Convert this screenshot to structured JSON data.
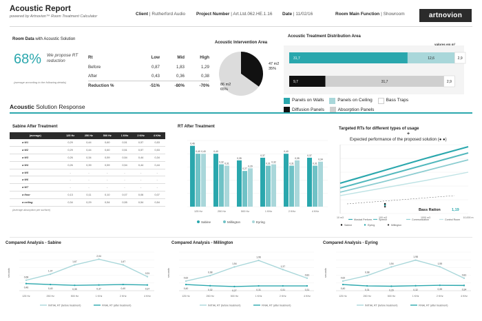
{
  "header": {
    "title": "Acoustic Report",
    "subtitle": "powered by Artnovion™ Room Treatment Calculator",
    "client_label": "Client",
    "client_value": "Rutherford Audio",
    "project_label": "Project Number",
    "project_value": "Art.Ltd.062.HE.1.16",
    "date_label": "Date",
    "date_value": "11/02/16",
    "function_label": "Room Main Function",
    "function_value": "Showroom",
    "logo_text": "artnovion"
  },
  "colors": {
    "accent": "#2aa7ad",
    "light": "#a9d7da",
    "dark": "#2b2b2b",
    "grey": "#cfcfcf",
    "lightgrey": "#dddddd"
  },
  "room_data": {
    "title_bold": "Room Data",
    "title_rest": " with Acoustic Solution",
    "percent": "68%",
    "propose_text": "We propose RT reduction",
    "note": "(average according to the following details)",
    "table": {
      "headers": [
        "Rt",
        "Low",
        "Mid",
        "High"
      ],
      "rows": [
        {
          "label": "Before",
          "values": [
            "0,87",
            "1,83",
            "1,29"
          ]
        },
        {
          "label": "After",
          "values": [
            "0,43",
            "0,36",
            "0,38"
          ]
        },
        {
          "label": "Reduction %",
          "values": [
            "-51%",
            "-80%",
            "-70%"
          ]
        }
      ]
    }
  },
  "intervention": {
    "title": "Acoustic Intervention Area",
    "slices": [
      {
        "label": "47 m2",
        "pct": "35%",
        "value": 35
      },
      {
        "label": "86 m2",
        "pct": "65%",
        "value": 65
      }
    ]
  },
  "distribution": {
    "title": "Acoustic Treatment Distribution Area",
    "unit": "valores em m²",
    "bars": [
      {
        "segments": [
          {
            "value": 31.7,
            "label": "31,7",
            "series": "Panels on Walls"
          },
          {
            "value": 12.6,
            "label": "12,6",
            "series": "Panels on Ceiling"
          },
          {
            "value": 2.9,
            "label": "2,9",
            "series": "Bass Traps"
          }
        ]
      },
      {
        "segments": [
          {
            "value": 9.7,
            "label": "9,7",
            "series": "Diffusion Panels"
          },
          {
            "value": 31.7,
            "label": "31,7",
            "series": "Absorption Panels"
          },
          {
            "value": 2.9,
            "label": "2,9",
            "series": "Bass Traps"
          }
        ]
      }
    ],
    "legend": [
      "Panels on Walls",
      "Panels on Ceiling",
      "Bass Traps",
      "Diffusion Panels",
      "Absorption Panels"
    ]
  },
  "response": {
    "title_bold": "Acoustic",
    "title_rest": " Solution Response"
  },
  "sabine_table": {
    "title": "Sabine After Treatment",
    "headers": [
      "(average)",
      "125 Hz",
      "250 Hz",
      "500 Hz",
      "1 KHz",
      "2 KHz",
      "4 KHz"
    ],
    "rows": [
      {
        "label": "α W1",
        "values": [
          "0,29",
          "0,44",
          "0,60",
          "0,51",
          "0,57",
          "0,53"
        ]
      },
      {
        "label": "α W2",
        "values": [
          "0,29",
          "0,44",
          "0,60",
          "0,51",
          "0,57",
          "0,53"
        ]
      },
      {
        "label": "α W3",
        "values": [
          "0,26",
          "0,34",
          "0,59",
          "0,54",
          "0,44",
          "0,34"
        ]
      },
      {
        "label": "α W4",
        "values": [
          "0,26",
          "0,39",
          "0,59",
          "0,54",
          "0,44",
          "0,44"
        ]
      },
      {
        "label": "α W5",
        "values": [
          "-",
          "-",
          "-",
          "-",
          "-",
          "-"
        ]
      },
      {
        "label": "α W6",
        "values": [
          "-",
          "-",
          "-",
          "-",
          "-",
          "-"
        ]
      },
      {
        "label": "α W7",
        "values": [
          "-",
          "-",
          "-",
          "-",
          "-",
          "-"
        ]
      },
      {
        "label": "α floor",
        "values": [
          "0,13",
          "0,11",
          "0,10",
          "0,07",
          "0,06",
          "0,07"
        ]
      },
      {
        "label": "α ceiling",
        "values": [
          "0,34",
          "0,29",
          "0,54",
          "0,55",
          "0,54",
          "0,54"
        ]
      }
    ],
    "note": "(average absorption per surface)"
  },
  "chart_data": [
    {
      "type": "bar",
      "title": "RT After Treatment",
      "categories": [
        "125 Hz",
        "250 Hz",
        "500 Hz",
        "1 KHz",
        "2 KHz",
        "4 KHz"
      ],
      "ylim": [
        0,
        0.5
      ],
      "series": [
        {
          "name": "Sabine",
          "values": [
            0.46,
            0.4,
            0.35,
            0.37,
            0.4,
            0.37
          ],
          "labels": [
            "0,46",
            "0,40",
            "0,35",
            "0,37",
            "0,40",
            "0,37"
          ]
        },
        {
          "name": "Millington",
          "values": [
            0.4,
            0.32,
            0.27,
            0.31,
            0.31,
            0.31
          ],
          "labels": [
            "0,40",
            "0,32",
            "0,27",
            "0,31",
            "0,31",
            "0,31"
          ]
        },
        {
          "name": "Eyring",
          "values": [
            0.4,
            0.31,
            0.29,
            0.32,
            0.35,
            0.34
          ],
          "labels": [
            "0,40",
            "0,31",
            "0,29",
            "0,32",
            "0,35",
            "0,34"
          ]
        }
      ]
    },
    {
      "type": "line",
      "title": "Targeted RTs for different types of usage",
      "subtitle": "Expected performance of the proposed solution (● ●)",
      "annotation_label": "Bass Ration",
      "annotation_value": "1,19",
      "x_ticks": [
        "10 m3",
        "100 m3",
        "1000 m3",
        "10,000 m"
      ],
      "x": [
        0,
        1,
        2,
        3
      ],
      "ylim": [
        0,
        1
      ],
      "series": [
        {
          "name": "Musical Perform.",
          "values": [
            0.44,
            0.62,
            0.8,
            0.97
          ]
        },
        {
          "name": "Speech",
          "values": [
            0.37,
            0.54,
            0.71,
            0.88
          ]
        },
        {
          "name": "Communication",
          "values": [
            0.31,
            0.46,
            0.62,
            0.78
          ]
        },
        {
          "name": "Control Room",
          "values": [
            0.26,
            0.37,
            0.48,
            0.6
          ]
        }
      ],
      "points": [
        {
          "name": "Sabine",
          "x": 1.05,
          "y": 0.14
        },
        {
          "name": "Eyring",
          "x": 1.05,
          "y": 0.12
        },
        {
          "name": "Millington",
          "x": 1.05,
          "y": 0.1
        }
      ],
      "legend": [
        "Musical Perform.",
        "Speech",
        "Communication",
        "Control Room",
        "Sabine",
        "Eyring",
        "Millington"
      ]
    },
    {
      "type": "line",
      "title": "Compared Analysis - Sabine",
      "ylabel": "seconds",
      "categories": [
        "125 Hz",
        "250 Hz",
        "500 Hz",
        "1 KHz",
        "2 KHz",
        "4 KHz"
      ],
      "ylim": [
        0,
        2.5
      ],
      "series": [
        {
          "name": "INITIAL RT (before treatment)",
          "values": [
            0.68,
            1.07,
            1.67,
            2.04,
            1.67,
            0.91
          ],
          "labels": [
            "0,68",
            "1,07",
            "1,67",
            "2,04",
            "1,67",
            "0,91"
          ]
        },
        {
          "name": "FINAL RT (after treatment)",
          "values": [
            0.46,
            0.4,
            0.35,
            0.37,
            0.4,
            0.37
          ],
          "labels": [
            "0,46",
            "0,40",
            "0,35",
            "0,37",
            "0,40",
            "0,37"
          ]
        }
      ]
    },
    {
      "type": "line",
      "title": "Compared Analysis - Millington",
      "ylabel": "seconds",
      "categories": [
        "125 Hz",
        "250 Hz",
        "500 Hz",
        "1 KHz",
        "2 KHz",
        "4 KHz"
      ],
      "ylim": [
        0,
        2.5
      ],
      "series": [
        {
          "name": "INITIAL RT (before treatment)",
          "values": [
            0.62,
            0.98,
            1.54,
            1.96,
            1.37,
            0.81
          ],
          "labels": [
            "0,62",
            "0,98",
            "1,54",
            "1,96",
            "1,37",
            "0,81"
          ]
        },
        {
          "name": "FINAL RT (after treatment)",
          "values": [
            0.4,
            0.32,
            0.27,
            0.31,
            0.31,
            0.31
          ],
          "labels": [
            "0,40",
            "0,32",
            "0,27",
            "0,31",
            "0,31",
            "0,31"
          ]
        }
      ]
    },
    {
      "type": "line",
      "title": "Compared Analysis - Eyring",
      "ylabel": "seconds",
      "categories": [
        "125 Hz",
        "250 Hz",
        "500 Hz",
        "1 KHz",
        "2 KHz",
        "4 KHz"
      ],
      "ylim": [
        0,
        2.5
      ],
      "series": [
        {
          "name": "INITIAL RT (before treatment)",
          "values": [
            0.62,
            0.98,
            1.54,
            1.98,
            1.55,
            0.81
          ],
          "labels": [
            "0,62",
            "0,98",
            "1,54",
            "1,98",
            "1,55",
            "0,81"
          ]
        },
        {
          "name": "FINAL RT (after treatment)",
          "values": [
            0.4,
            0.31,
            0.29,
            0.32,
            0.35,
            0.34
          ],
          "labels": [
            "0,40",
            "0,31",
            "0,29",
            "0,32",
            "0,35",
            "0,34"
          ]
        }
      ]
    }
  ]
}
